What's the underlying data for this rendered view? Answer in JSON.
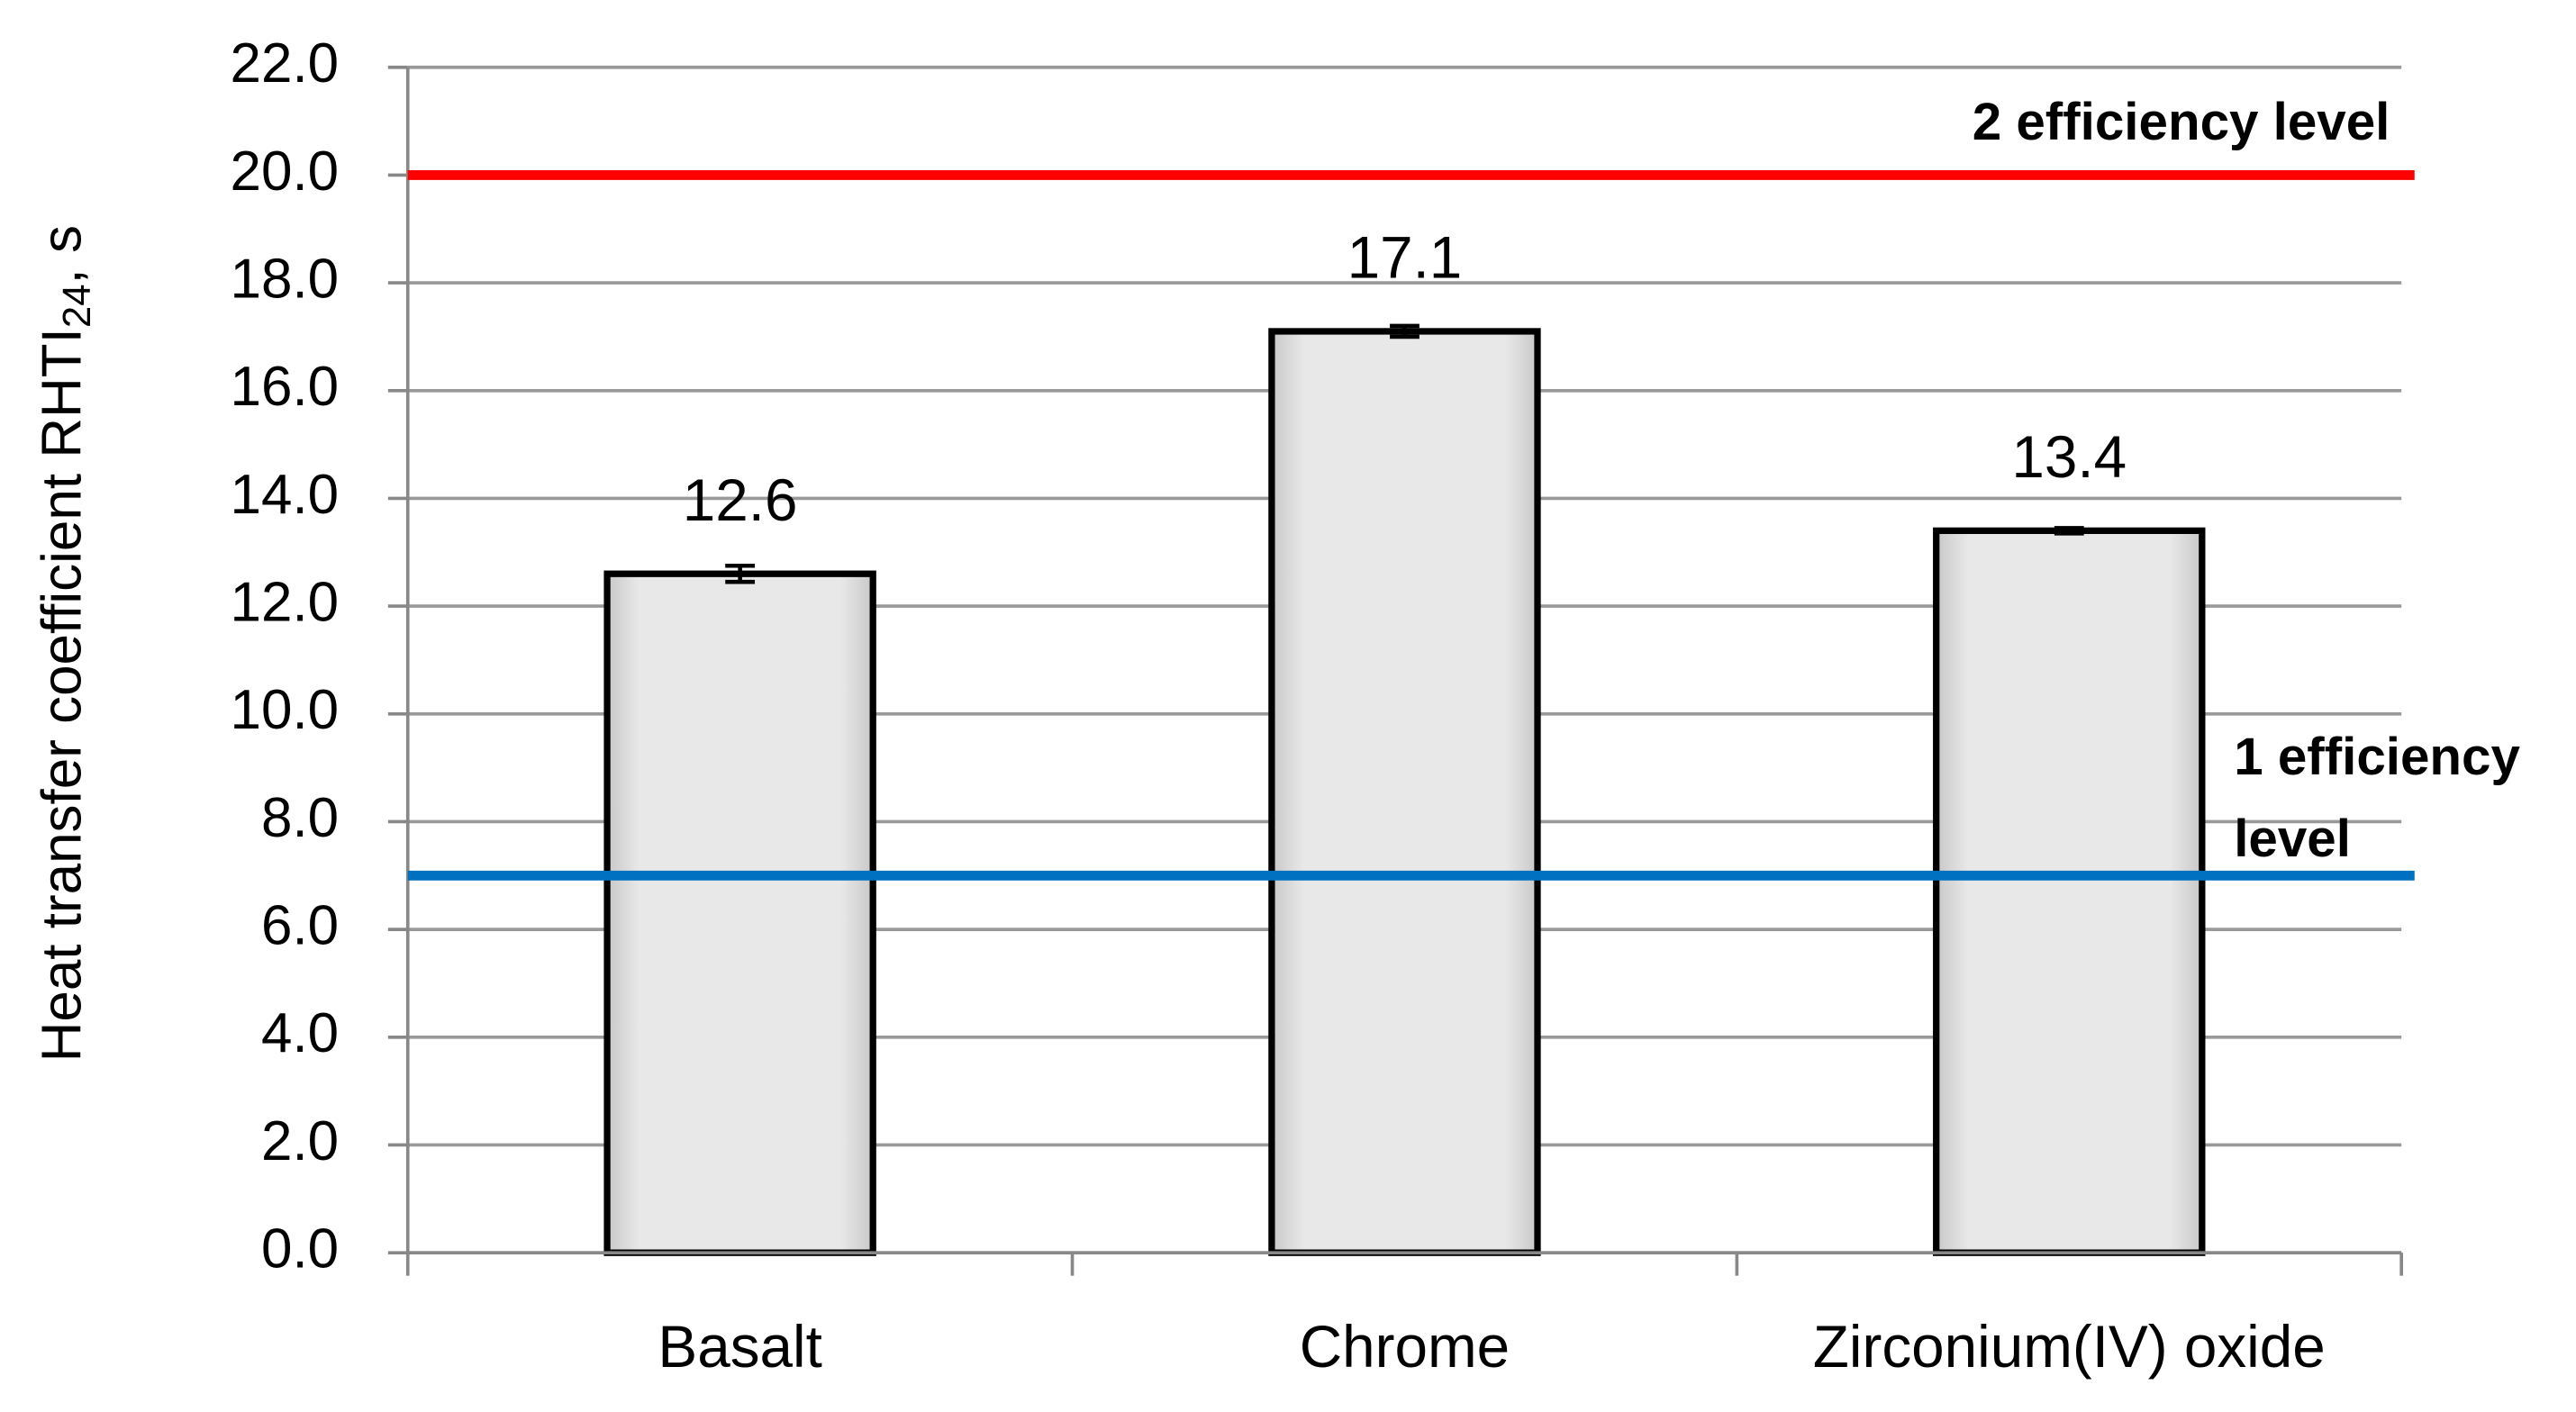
{
  "chart_data": {
    "type": "bar",
    "y_label": "Heat transfer coefficient  RHTI",
    "y_label_sub": "24",
    "y_label_suffix": ", s",
    "categories": [
      "Basalt",
      "Chrome",
      "Zirconium(IV) oxide"
    ],
    "values": [
      12.6,
      17.1,
      13.4
    ],
    "errors": [
      0.15,
      0.1,
      0.05
    ],
    "color": "#e6e6e6",
    "ylim": [
      0,
      22
    ],
    "yticks": [
      {
        "value": 0,
        "label": "0.0"
      },
      {
        "value": 2,
        "label": "2.0"
      },
      {
        "value": 4,
        "label": "4.0"
      },
      {
        "value": 6,
        "label": "6.0"
      },
      {
        "value": 8,
        "label": "8.0"
      },
      {
        "value": 10,
        "label": "10.0"
      },
      {
        "value": 12,
        "label": "12.0"
      },
      {
        "value": 14,
        "label": "14.0"
      },
      {
        "value": 16,
        "label": "16.0"
      },
      {
        "value": 18,
        "label": "18.0"
      },
      {
        "value": 20,
        "label": "20.0"
      },
      {
        "value": 22,
        "label": "22.0"
      }
    ],
    "grid": true,
    "reference_lines": [
      {
        "value": 20,
        "color": "#ff0000",
        "label_lines": [
          "2 efficiency level"
        ]
      },
      {
        "value": 7,
        "color": "#0070c0",
        "label_lines": [
          "1 efficiency",
          "level"
        ]
      }
    ]
  }
}
